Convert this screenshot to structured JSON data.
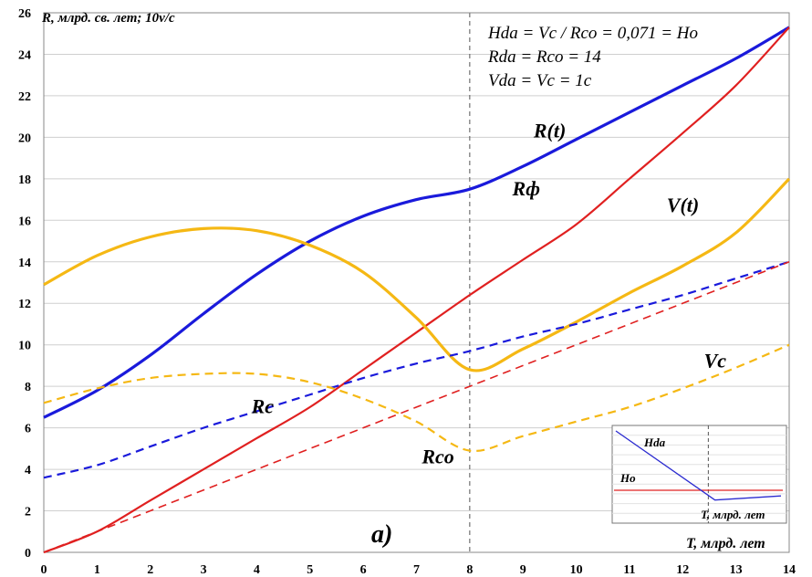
{
  "chart_data": {
    "type": "line",
    "ylabel": "R, млрд. св. лет; 10v/c",
    "xlabel": "T, млрд. лет",
    "panel_label": "а)",
    "xlim": [
      0,
      14
    ],
    "ylim": [
      0,
      26
    ],
    "x_ticks": [
      "0",
      "1",
      "2",
      "3",
      "4",
      "5",
      "6",
      "7",
      "8",
      "9",
      "10",
      "11",
      "12",
      "13",
      "14"
    ],
    "y_ticks": [
      "0",
      "2",
      "4",
      "6",
      "8",
      "10",
      "12",
      "14",
      "16",
      "18",
      "20",
      "22",
      "24",
      "26"
    ],
    "grid": true,
    "vertical_markers": [
      8,
      14
    ],
    "annotations": [
      "Hda = Vc / Rco = 0,071 = Ho",
      "Rda = Rco = 14",
      "Vda = Vc = 1c"
    ],
    "series": [
      {
        "name": "R(t)",
        "color": "#1a1adb",
        "style": "solid",
        "x": [
          0,
          1,
          2,
          3,
          4,
          5,
          6,
          7,
          8,
          9,
          10,
          11,
          12,
          13,
          14
        ],
        "y": [
          6.5,
          7.8,
          9.5,
          11.5,
          13.4,
          15.0,
          16.2,
          17.0,
          17.5,
          18.6,
          19.9,
          21.2,
          22.5,
          23.8,
          25.3
        ]
      },
      {
        "name": "Rф",
        "color": "#e02020",
        "style": "solid",
        "x": [
          0,
          1,
          2,
          3,
          4,
          5,
          6,
          7,
          8,
          9,
          10,
          11,
          12,
          13,
          14
        ],
        "y": [
          0,
          1.0,
          2.5,
          4.0,
          5.5,
          7.0,
          8.8,
          10.6,
          12.4,
          14.1,
          15.8,
          18.0,
          20.2,
          22.5,
          25.3
        ]
      },
      {
        "name": "V(t)",
        "color": "#f5b814",
        "style": "solid",
        "x": [
          0,
          1,
          2,
          3,
          4,
          5,
          6,
          7,
          8,
          9,
          10,
          11,
          12,
          13,
          14
        ],
        "y": [
          12.9,
          14.3,
          15.2,
          15.6,
          15.5,
          14.8,
          13.5,
          11.3,
          8.8,
          9.8,
          11.1,
          12.5,
          13.8,
          15.4,
          18.0
        ]
      },
      {
        "name": "Rc",
        "color": "#1a1adb",
        "style": "dashed",
        "x": [
          0,
          1,
          2,
          3,
          4,
          5,
          6,
          7,
          8,
          9,
          10,
          11,
          12,
          13,
          14
        ],
        "y": [
          3.6,
          4.2,
          5.1,
          6.0,
          6.8,
          7.6,
          8.4,
          9.1,
          9.7,
          10.4,
          11.0,
          11.7,
          12.4,
          13.2,
          14.0
        ]
      },
      {
        "name": "Rco",
        "color": "#e02020",
        "style": "dashed",
        "x": [
          0,
          14
        ],
        "y": [
          0,
          14
        ]
      },
      {
        "name": "Vc",
        "color": "#f5b814",
        "style": "dashed",
        "x": [
          0,
          1,
          2,
          3,
          4,
          5,
          6,
          7,
          8,
          9,
          10,
          11,
          12,
          13,
          14
        ],
        "y": [
          7.2,
          7.9,
          8.4,
          8.6,
          8.6,
          8.2,
          7.4,
          6.3,
          4.9,
          5.6,
          6.3,
          7.0,
          7.9,
          8.9,
          10.0
        ]
      }
    ],
    "label_positions": {
      "R(t)": [
        9.2,
        20.0
      ],
      "Rф": [
        8.8,
        17.2
      ],
      "V(t)": [
        11.7,
        16.4
      ],
      "Rc": [
        3.9,
        6.7
      ],
      "Rco": [
        7.1,
        4.3
      ],
      "Vc": [
        12.4,
        8.9
      ]
    },
    "inset": {
      "labels": [
        "Hda",
        "Ho",
        "T, млрд. лет"
      ],
      "Hda_line": [
        [
          0,
          1.0
        ],
        [
          0.6,
          0.15
        ],
        [
          1.0,
          0.2
        ]
      ],
      "Ho_level": 0.27
    }
  }
}
